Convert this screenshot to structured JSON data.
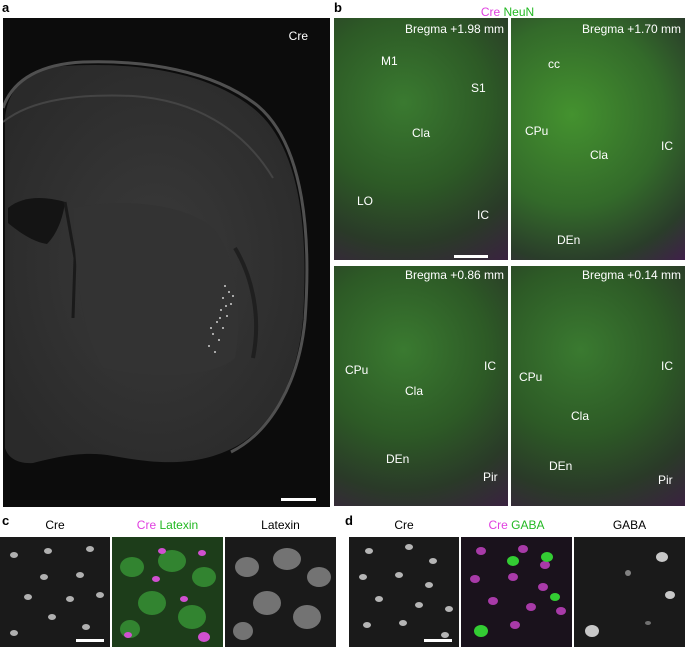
{
  "panels": {
    "a": {
      "letter": "a",
      "label": "Cre"
    },
    "b": {
      "letter": "b",
      "header_cre": "Cre",
      "header_neun": "NeuN",
      "q1": {
        "bregma": "Bregma +1.98 mm",
        "labels": [
          "M1",
          "S1",
          "Cla",
          "LO",
          "IC"
        ]
      },
      "q2": {
        "bregma": "Bregma +1.70 mm",
        "labels": [
          "cc",
          "CPu",
          "Cla",
          "IC",
          "DEn"
        ]
      },
      "q3": {
        "bregma": "Bregma +0.86 mm",
        "labels": [
          "CPu",
          "IC",
          "Cla",
          "DEn",
          "Pir"
        ]
      },
      "q4": {
        "bregma": "Bregma +0.14 mm",
        "labels": [
          "CPu",
          "IC",
          "Cla",
          "DEn",
          "Pir"
        ]
      }
    },
    "c": {
      "letter": "c",
      "h1": "Cre",
      "h2_cre": "Cre",
      "h2_other": "Latexin",
      "h3": "Latexin"
    },
    "d": {
      "letter": "d",
      "h1": "Cre",
      "h2_cre": "Cre",
      "h2_other": "GABA",
      "h3": "GABA"
    }
  },
  "colors": {
    "cre": "#e040e0",
    "green": "#22b822",
    "background": "#0c0c0c"
  }
}
